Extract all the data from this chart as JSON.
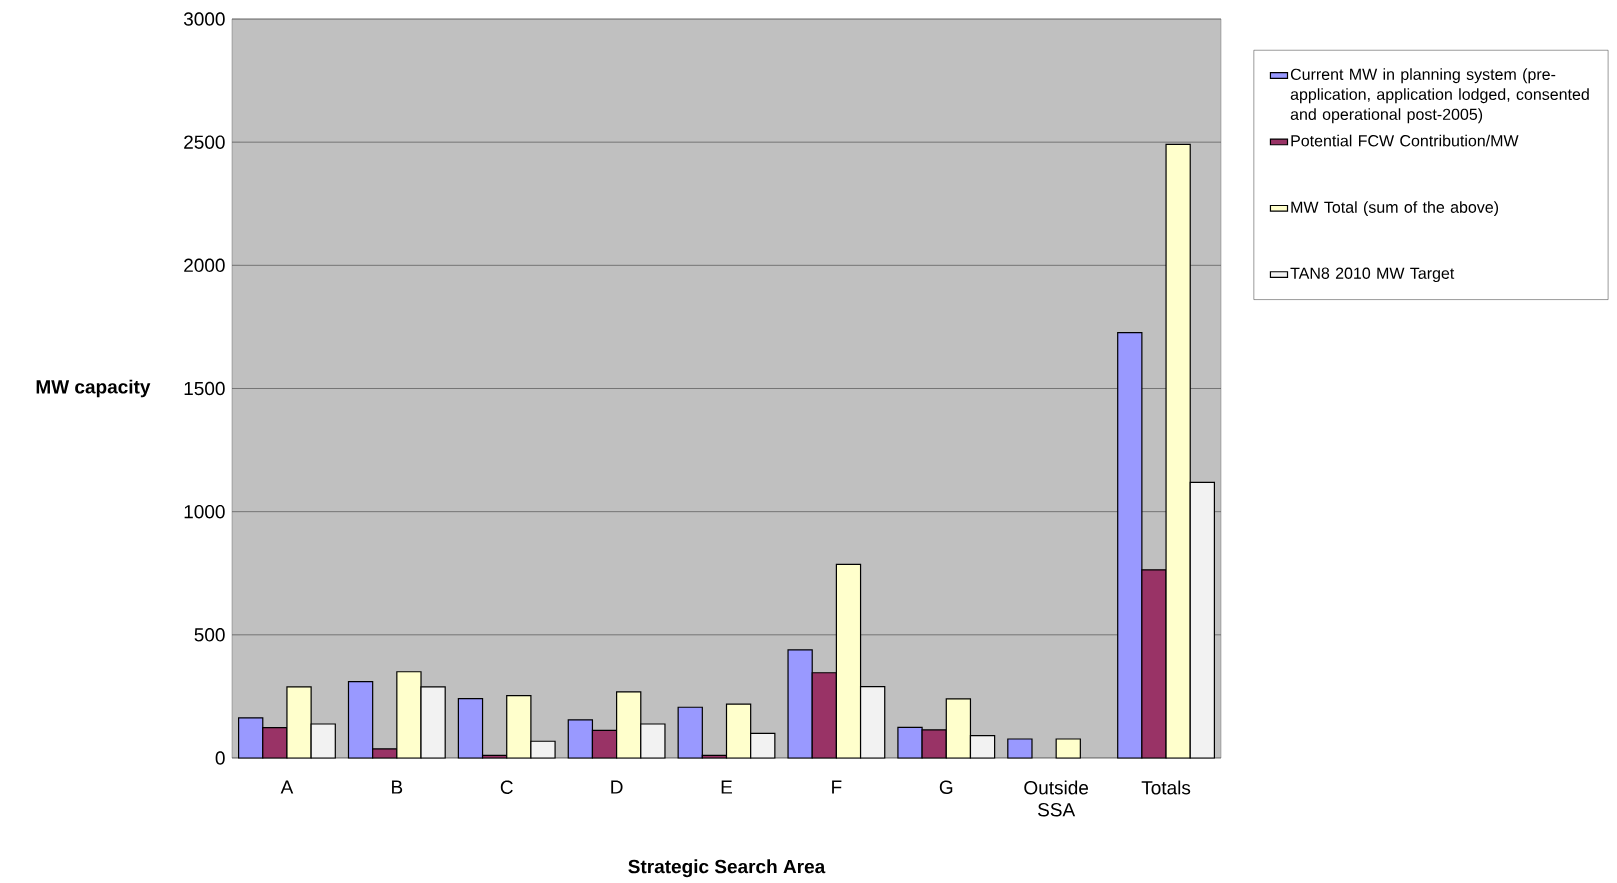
{
  "chart_data": {
    "type": "bar",
    "xlabel": "Strategic Search Area",
    "ylabel": "MW capacity",
    "categories": [
      "A",
      "B",
      "C",
      "D",
      "E",
      "F",
      "G",
      "Outside SSA",
      "Totals"
    ],
    "series": [
      {
        "name": "Current MW in planning system (pre-application, application lodged, consented and operational post-2005)",
        "color": "#9999ff",
        "values": [
          163,
          310,
          241,
          155,
          206,
          439,
          124,
          77,
          1727
        ]
      },
      {
        "name": "Potential FCW Contribution/MW",
        "color": "#993366",
        "values": [
          123,
          37,
          11,
          112,
          11,
          346,
          114,
          null,
          764
        ]
      },
      {
        "name": "MW Total (sum of the above)",
        "color": "#ffffcc",
        "values": [
          289,
          350,
          253,
          268,
          219,
          786,
          240,
          77,
          2491
        ]
      },
      {
        "name": "TAN8 2010 MW Target",
        "color": "#f2f2f2",
        "values": [
          138,
          289,
          68,
          138,
          100,
          290,
          91,
          null,
          1119
        ]
      }
    ],
    "ylim": [
      0,
      3000
    ],
    "yticks": [
      0,
      500,
      1000,
      1500,
      2000,
      2500,
      3000
    ],
    "grid": "y",
    "legend": "right"
  }
}
